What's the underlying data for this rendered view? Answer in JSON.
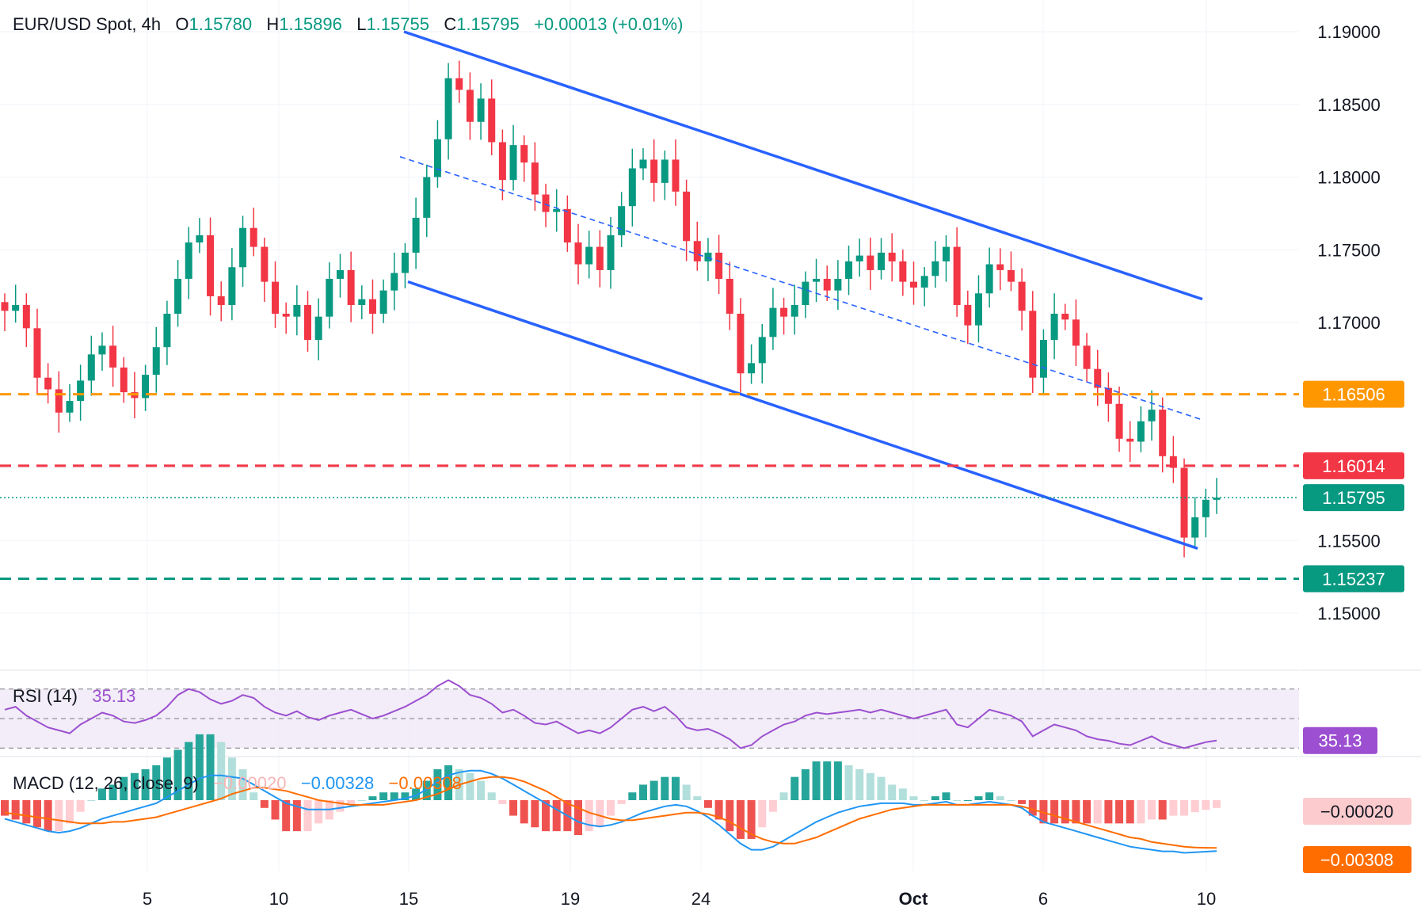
{
  "header": {
    "symbol": "EUR/USD Spot, 4h",
    "o_label": "O",
    "o_value": "1.15780",
    "h_label": "H",
    "h_value": "1.15896",
    "l_label": "L",
    "l_value": "1.15755",
    "c_label": "C",
    "c_value": "1.15795",
    "change": "+0.00013 (+0.01%)"
  },
  "colors": {
    "up": "#089981",
    "down": "#f23645",
    "trendline": "#2962ff",
    "orange_level": "#ff9800",
    "red_level": "#f23645",
    "green_level": "#089981",
    "rsi": "#9c4fd0",
    "rsi_bg": "#ede7f6",
    "macd_line": "#2196f3",
    "signal_line": "#ff6d00"
  },
  "chart_data": [
    {
      "type": "candlestick",
      "title": "EUR/USD Spot, 4h",
      "x_ticks": [
        "5",
        "10",
        "15",
        "19",
        "24",
        "Oct",
        "6",
        "10"
      ],
      "y_ticks": [
        "1.15000",
        "1.15500",
        "1.16000",
        "1.16500",
        "1.17000",
        "1.17500",
        "1.18000",
        "1.18500",
        "1.19000"
      ],
      "ylim": [
        1.1465,
        1.1918
      ],
      "levels": [
        {
          "label": "1.16506",
          "value": 1.16506,
          "color": "#ff9800",
          "style": "dashed"
        },
        {
          "label": "1.16014",
          "value": 1.16014,
          "color": "#f23645",
          "style": "dashed"
        },
        {
          "label": "1.15795",
          "value": 1.15795,
          "color": "#089981",
          "style": "dotted"
        },
        {
          "label": "1.15237",
          "value": 1.15237,
          "color": "#089981",
          "style": "dashed"
        }
      ],
      "trend_channel": {
        "upper": [
          [
            1.19,
            0
          ],
          [
            1.1716,
            1
          ]
        ],
        "lower": [
          [
            1.1728,
            0
          ],
          [
            1.1544,
            1
          ]
        ],
        "mid_dashed": [
          [
            1.1814,
            0
          ],
          [
            1.1633,
            1
          ]
        ]
      },
      "close_path": [
        1.1708,
        1.1712,
        1.1696,
        1.1662,
        1.1654,
        1.1638,
        1.1646,
        1.166,
        1.1678,
        1.1684,
        1.1669,
        1.1652,
        1.1648,
        1.1664,
        1.1683,
        1.1706,
        1.173,
        1.1755,
        1.176,
        1.1718,
        1.1712,
        1.1738,
        1.1765,
        1.1752,
        1.1728,
        1.1706,
        1.1704,
        1.1712,
        1.1688,
        1.1704,
        1.173,
        1.1736,
        1.1712,
        1.1716,
        1.1706,
        1.1722,
        1.1734,
        1.1748,
        1.1772,
        1.18,
        1.1826,
        1.1868,
        1.186,
        1.1838,
        1.1854,
        1.1824,
        1.1798,
        1.1822,
        1.181,
        1.1788,
        1.1776,
        1.1778,
        1.1755,
        1.174,
        1.1752,
        1.1736,
        1.176,
        1.178,
        1.1806,
        1.1812,
        1.1796,
        1.1812,
        1.179,
        1.1756,
        1.1742,
        1.1748,
        1.173,
        1.1706,
        1.1665,
        1.1672,
        1.169,
        1.171,
        1.1704,
        1.1712,
        1.1728,
        1.173,
        1.1722,
        1.173,
        1.1742,
        1.1746,
        1.1736,
        1.1748,
        1.1742,
        1.1728,
        1.1724,
        1.1732,
        1.1742,
        1.1752,
        1.1712,
        1.1698,
        1.172,
        1.174,
        1.1736,
        1.1728,
        1.1708,
        1.1662,
        1.1688,
        1.1706,
        1.1702,
        1.1684,
        1.1668,
        1.1655,
        1.1644,
        1.162,
        1.1618,
        1.1632,
        1.164,
        1.1608,
        1.16,
        1.1552,
        1.1566,
        1.1578,
        1.15795
      ],
      "y_axis_side": "right"
    },
    {
      "type": "line",
      "title": "RSI (14)",
      "value_label": "35.13",
      "bands": [
        70,
        50,
        30
      ],
      "ylim": [
        28,
        78
      ],
      "values": [
        56,
        58,
        52,
        48,
        44,
        42,
        40,
        46,
        50,
        54,
        52,
        48,
        47,
        49,
        52,
        58,
        66,
        70,
        68,
        63,
        60,
        62,
        66,
        64,
        58,
        54,
        52,
        55,
        51,
        49,
        52,
        54,
        56,
        53,
        50,
        52,
        55,
        58,
        62,
        66,
        72,
        76,
        72,
        66,
        64,
        60,
        54,
        56,
        52,
        47,
        46,
        48,
        44,
        40,
        42,
        40,
        44,
        50,
        56,
        58,
        55,
        58,
        52,
        44,
        42,
        43,
        40,
        36,
        30,
        32,
        38,
        42,
        46,
        48,
        52,
        54,
        53,
        54,
        55,
        56,
        54,
        56,
        54,
        52,
        50,
        52,
        54,
        56,
        46,
        44,
        50,
        56,
        54,
        52,
        48,
        38,
        42,
        46,
        44,
        42,
        38,
        36,
        35,
        33,
        32,
        35,
        38,
        34,
        32,
        30,
        32,
        34,
        35.13
      ],
      "y_axis_side": "right"
    },
    {
      "type": "bar",
      "title": "MACD (12, 26, close, 9)",
      "legend_values": [
        "−0.00020",
        "−0.00328",
        "−0.00308"
      ],
      "value_labels": [
        "−0.00020",
        "−0.00308"
      ],
      "ylim": [
        -0.0046,
        0.0016
      ],
      "macd": [
        -0.0012,
        -0.0014,
        -0.0016,
        -0.0018,
        -0.002,
        -0.0021,
        -0.002,
        -0.0018,
        -0.0015,
        -0.0012,
        -0.001,
        -0.0008,
        -0.0006,
        -0.0004,
        -0.0002,
        0.0002,
        0.0006,
        0.001,
        0.0014,
        0.0016,
        0.0016,
        0.0015,
        0.0014,
        0.001,
        0.0006,
        0.0002,
        -0.0002,
        -0.0004,
        -0.0006,
        -0.0006,
        -0.0006,
        -0.0005,
        -0.0004,
        -0.0003,
        -0.0002,
        -0.0001,
        0.0,
        0.0001,
        0.0003,
        0.0007,
        0.0012,
        0.0016,
        0.0018,
        0.0019,
        0.0019,
        0.0017,
        0.0014,
        0.001,
        0.0006,
        0.0002,
        -0.0002,
        -0.0006,
        -0.001,
        -0.0014,
        -0.0016,
        -0.0017,
        -0.0016,
        -0.0014,
        -0.0011,
        -0.0008,
        -0.0006,
        -0.0004,
        -0.0003,
        -0.0004,
        -0.0007,
        -0.0011,
        -0.0016,
        -0.0022,
        -0.0028,
        -0.0032,
        -0.0032,
        -0.003,
        -0.0026,
        -0.0022,
        -0.0018,
        -0.0014,
        -0.0011,
        -0.0008,
        -0.0006,
        -0.0004,
        -0.0003,
        -0.0002,
        -0.0002,
        -0.0002,
        -0.0003,
        -0.0003,
        -0.0002,
        -0.0001,
        -0.0003,
        -0.0003,
        -0.0002,
        -0.0001,
        -0.0002,
        -0.0003,
        -0.0005,
        -0.001,
        -0.0014,
        -0.0016,
        -0.0018,
        -0.002,
        -0.0022,
        -0.0024,
        -0.0026,
        -0.0028,
        -0.003,
        -0.0031,
        -0.0032,
        -0.0033,
        -0.0033,
        -0.0034,
        -0.00336,
        -0.00332,
        -0.00328
      ],
      "signal": [
        -0.0008,
        -0.0009,
        -0.001,
        -0.0011,
        -0.0012,
        -0.0013,
        -0.0014,
        -0.0015,
        -0.0015,
        -0.0015,
        -0.0014,
        -0.0014,
        -0.0013,
        -0.0012,
        -0.0011,
        -0.0009,
        -0.0007,
        -0.0005,
        -0.0003,
        -0.0001,
        0.0001,
        0.0004,
        0.0006,
        0.0008,
        0.0008,
        0.0007,
        0.0006,
        0.0004,
        0.0002,
        0.0,
        -0.0001,
        -0.0002,
        -0.0003,
        -0.0003,
        -0.0003,
        -0.0003,
        -0.0002,
        -0.0001,
        0.0,
        0.0002,
        0.0004,
        0.0007,
        0.001,
        0.0012,
        0.0014,
        0.0015,
        0.0015,
        0.0014,
        0.0012,
        0.0009,
        0.0006,
        0.0002,
        -0.0002,
        -0.0005,
        -0.0008,
        -0.001,
        -0.0012,
        -0.0013,
        -0.0013,
        -0.0012,
        -0.0011,
        -0.001,
        -0.0009,
        -0.0008,
        -0.0008,
        -0.0009,
        -0.0011,
        -0.0014,
        -0.0018,
        -0.0022,
        -0.0025,
        -0.0027,
        -0.0028,
        -0.0028,
        -0.0026,
        -0.0024,
        -0.0021,
        -0.0018,
        -0.0015,
        -0.0012,
        -0.001,
        -0.0008,
        -0.0006,
        -0.0005,
        -0.0004,
        -0.0003,
        -0.0003,
        -0.0003,
        -0.0003,
        -0.0003,
        -0.0003,
        -0.0003,
        -0.0003,
        -0.0003,
        -0.0004,
        -0.0006,
        -0.0008,
        -0.001,
        -0.0012,
        -0.0014,
        -0.0016,
        -0.0018,
        -0.002,
        -0.0022,
        -0.0024,
        -0.0025,
        -0.0027,
        -0.0028,
        -0.0029,
        -0.003,
        -0.00305,
        -0.00307,
        -0.00308
      ],
      "y_axis_side": "right"
    }
  ]
}
